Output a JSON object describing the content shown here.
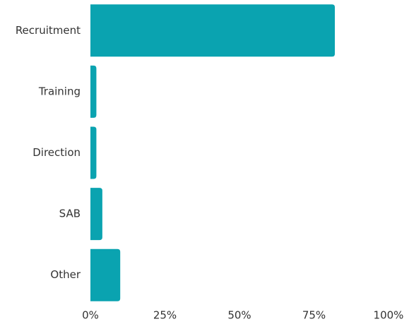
{
  "chart_data": {
    "type": "hbar",
    "categories": [
      "Recruitment",
      "Training",
      "Direction",
      "SAB",
      "Other"
    ],
    "values": [
      82,
      2,
      2,
      4,
      10
    ],
    "color": "#0aa3b0",
    "xlim": [
      0,
      100
    ],
    "xticks": [
      {
        "value": 0,
        "label": "0%"
      },
      {
        "value": 25,
        "label": "25%"
      },
      {
        "value": 50,
        "label": "50%"
      },
      {
        "value": 75,
        "label": "75%"
      },
      {
        "value": 100,
        "label": "100%"
      }
    ],
    "grid": false
  }
}
